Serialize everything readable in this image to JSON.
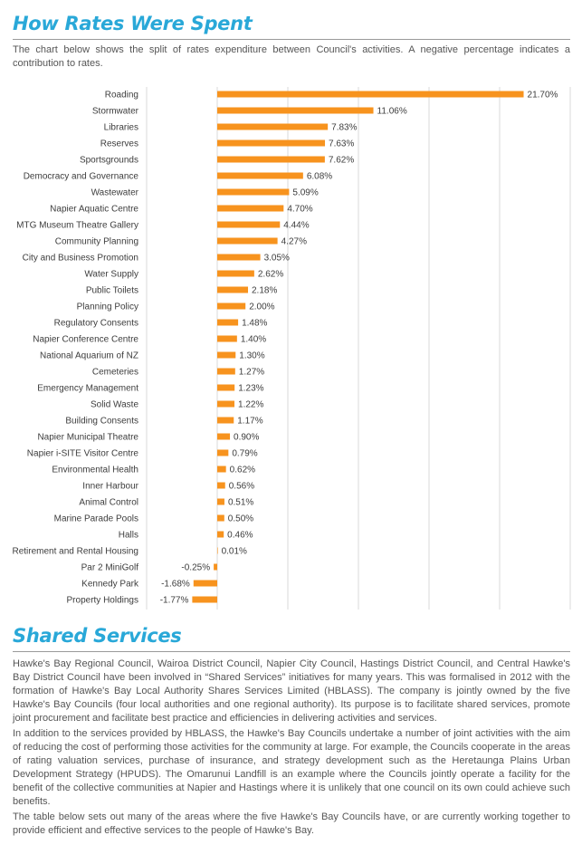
{
  "section1": {
    "title": "How Rates Were Spent",
    "intro": "The chart below shows the split of rates expenditure between Council's activities. A negative percentage indicates a contribution to rates."
  },
  "chart_data": {
    "type": "bar",
    "orientation": "horizontal",
    "bar_color": "#f7931e",
    "grid": true,
    "xlim": [
      -5,
      25
    ],
    "categories": [
      "Roading",
      "Stormwater",
      "Libraries",
      "Reserves",
      "Sportsgrounds",
      "Democracy and Governance",
      "Wastewater",
      "Napier Aquatic Centre",
      "MTG Museum Theatre Gallery",
      "Community Planning",
      "City and Business Promotion",
      "Water Supply",
      "Public Toilets",
      "Planning Policy",
      "Regulatory Consents",
      "Napier Conference Centre",
      "National Aquarium of NZ",
      "Cemeteries",
      "Emergency Management",
      "Solid Waste",
      "Building Consents",
      "Napier Municipal Theatre",
      "Napier i-SITE Visitor Centre",
      "Environmental Health",
      "Inner Harbour",
      "Animal Control",
      "Marine Parade Pools",
      "Halls",
      "Retirement and Rental Housing",
      "Par 2 MiniGolf",
      "Kennedy Park",
      "Property Holdings"
    ],
    "values": [
      21.7,
      11.06,
      7.83,
      7.63,
      7.62,
      6.08,
      5.09,
      4.7,
      4.44,
      4.27,
      3.05,
      2.62,
      2.18,
      2.0,
      1.48,
      1.4,
      1.3,
      1.27,
      1.23,
      1.22,
      1.17,
      0.9,
      0.79,
      0.62,
      0.56,
      0.51,
      0.5,
      0.46,
      0.01,
      -0.25,
      -1.68,
      -1.77
    ],
    "value_labels": [
      "21.70%",
      "11.06%",
      "7.83%",
      "7.63%",
      "7.62%",
      "6.08%",
      "5.09%",
      "4.70%",
      "4.44%",
      "4.27%",
      "3.05%",
      "2.62%",
      "2.18%",
      "2.00%",
      "1.48%",
      "1.40%",
      "1.30%",
      "1.27%",
      "1.23%",
      "1.22%",
      "1.17%",
      "0.90%",
      "0.79%",
      "0.62%",
      "0.56%",
      "0.51%",
      "0.50%",
      "0.46%",
      "0.01%",
      "-0.25%",
      "-1.68%",
      "-1.77%"
    ]
  },
  "section2": {
    "title": "Shared Services",
    "paragraphs": [
      "Hawke's Bay Regional Council, Wairoa District Council, Napier City Council, Hastings District Council, and Central Hawke's Bay District Council have been involved in “Shared Services” initiatives for many years. This was formalised in 2012 with the formation of Hawke's Bay Local Authority Shares Services Limited (HBLASS). The company is jointly owned by the five Hawke's Bay Councils (four local authorities and one regional authority). Its purpose is to facilitate shared services, promote joint procurement and facilitate best practice and efficiencies in delivering activities and services.",
      "In addition to the services provided by HBLASS, the Hawke's Bay Councils undertake a number of joint activities with the aim of reducing the cost of performing those activities for the community at large. For example, the Councils cooperate in the areas of rating valuation services, purchase of insurance, and strategy development such as the Heretaunga Plains Urban Development Strategy (HPUDS). The Omarunui Landfill is an example where the Councils jointly operate a facility for the benefit of the collective communities at Napier and Hastings where it is unlikely that one council on its own could achieve such benefits.",
      "The table below sets out many of the areas where the five Hawke's Bay Councils have, or are currently working together to provide efficient and effective services to the people of Hawke's Bay."
    ]
  }
}
